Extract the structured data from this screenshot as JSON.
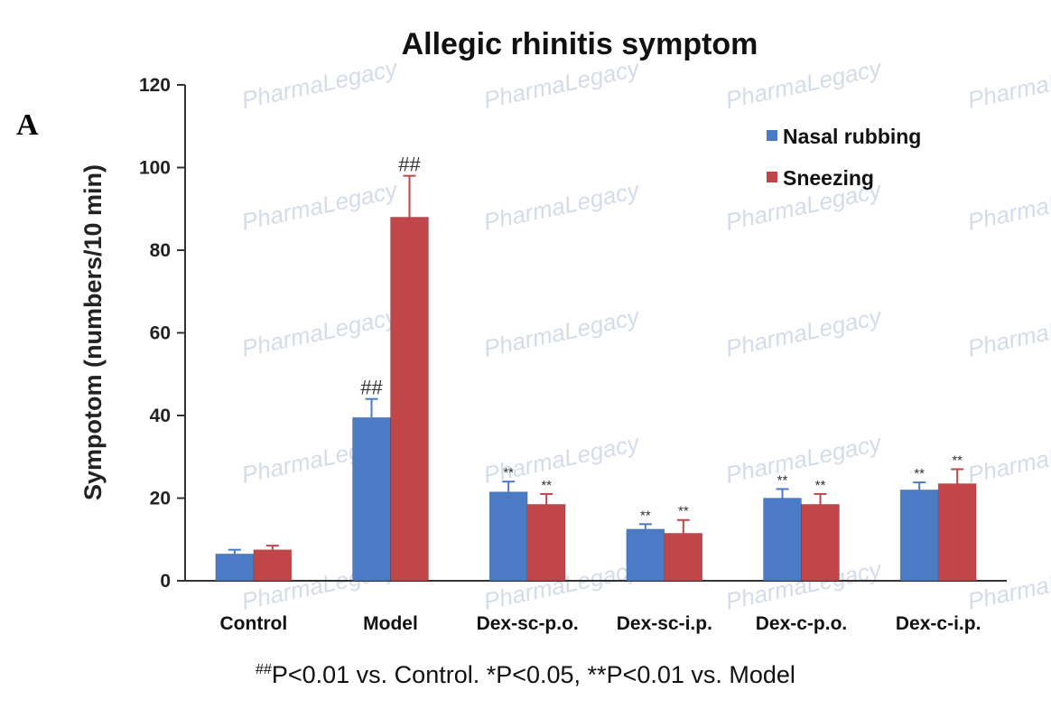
{
  "panel_label": "A",
  "watermark": "PharmaLegacy",
  "footnote": {
    "sup": "##",
    "text": "P<0.01 vs. Control. *P<0.05, **P<0.01 vs. Model"
  },
  "colors": {
    "nasal": "#4a7bc4",
    "sneezing": "#c0464a",
    "axis": "#333333",
    "watermark": "#d3dce8"
  },
  "chart_data": {
    "type": "bar",
    "title": "Allegic rhinitis symptom",
    "xlabel": "",
    "ylabel": "Sympotom (numbers/10 min)",
    "ylim": [
      0,
      120
    ],
    "yticks": [
      0,
      20,
      40,
      60,
      80,
      100,
      120
    ],
    "grid": false,
    "legend_position": "top-right",
    "categories": [
      "Control",
      "Model",
      "Dex-sc-p.o.",
      "Dex-sc-i.p.",
      "Dex-c-p.o.",
      "Dex-c-i.p."
    ],
    "series": [
      {
        "name": "Nasal rubbing",
        "values": [
          6.5,
          39.5,
          21.5,
          12.5,
          20,
          22
        ],
        "errors": [
          1,
          4.5,
          2.5,
          1.2,
          2.2,
          1.8
        ],
        "labels": [
          "",
          "##",
          "**",
          "**",
          "**",
          "**"
        ]
      },
      {
        "name": "Sneezing",
        "values": [
          7.5,
          88,
          18.5,
          11.5,
          18.5,
          23.5
        ],
        "errors": [
          1,
          10,
          2.5,
          3.2,
          2.5,
          3.5
        ],
        "labels": [
          "",
          "##",
          "**",
          "**",
          "**",
          "**"
        ]
      }
    ]
  }
}
